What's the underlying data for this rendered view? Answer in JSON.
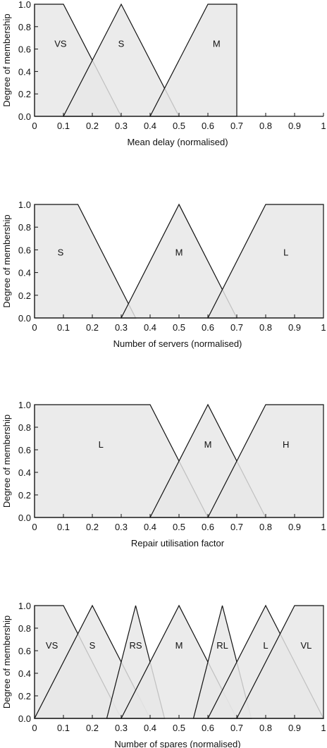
{
  "chart_data": [
    {
      "type": "area",
      "xlabel": "Mean delay (normalised)",
      "ylabel": "Degree of membership",
      "xlim": [
        0,
        1
      ],
      "ylim": [
        0,
        1
      ],
      "xticks": [
        "0",
        "0.1",
        "0.2",
        "0.3",
        "0.4",
        "0.5",
        "0.6",
        "0.7",
        "0.8",
        "0.9",
        "1"
      ],
      "yticks": [
        "0.0",
        "0.2",
        "0.4",
        "0.6",
        "0.8",
        "1.0"
      ],
      "series": [
        {
          "name": "VS",
          "x": [
            0,
            0,
            0.1,
            0.3
          ],
          "y": [
            0,
            1,
            1,
            0
          ],
          "label_x": 0.09,
          "label_y": 0.65
        },
        {
          "name": "S",
          "x": [
            0.1,
            0.3,
            0.5
          ],
          "y": [
            0,
            1,
            0
          ],
          "label_x": 0.3,
          "label_y": 0.65
        },
        {
          "name": "M",
          "x": [
            0.4,
            0.6,
            0.7,
            0.7
          ],
          "y": [
            0,
            1,
            1,
            0
          ],
          "label_x": 0.63,
          "label_y": 0.65
        }
      ]
    },
    {
      "type": "area",
      "xlabel": "Number of servers (normalised)",
      "ylabel": "Degree of membership",
      "xlim": [
        0,
        1
      ],
      "ylim": [
        0,
        1
      ],
      "xticks": [
        "0",
        "0.1",
        "0.2",
        "0.3",
        "0.4",
        "0.5",
        "0.6",
        "0.7",
        "0.8",
        "0.9",
        "1"
      ],
      "yticks": [
        "0.0",
        "0.2",
        "0.4",
        "0.6",
        "0.8",
        "1.0"
      ],
      "series": [
        {
          "name": "S",
          "x": [
            0,
            0,
            0.15,
            0.35
          ],
          "y": [
            0,
            1,
            1,
            0
          ],
          "label_x": 0.09,
          "label_y": 0.58
        },
        {
          "name": "M",
          "x": [
            0.3,
            0.5,
            0.7
          ],
          "y": [
            0,
            1,
            0
          ],
          "label_x": 0.5,
          "label_y": 0.58
        },
        {
          "name": "L",
          "x": [
            0.6,
            0.8,
            1,
            1
          ],
          "y": [
            0,
            1,
            1,
            0
          ],
          "label_x": 0.87,
          "label_y": 0.58
        }
      ]
    },
    {
      "type": "area",
      "xlabel": "Repair utilisation factor",
      "ylabel": "Degree of membership",
      "xlim": [
        0,
        1
      ],
      "ylim": [
        0,
        1
      ],
      "xticks": [
        "0",
        "0.1",
        "0.2",
        "0.3",
        "0.4",
        "0.5",
        "0.6",
        "0.7",
        "0.8",
        "0.9",
        "1"
      ],
      "yticks": [
        "0.0",
        "0.2",
        "0.4",
        "0.6",
        "0.8",
        "1.0"
      ],
      "series": [
        {
          "name": "L",
          "x": [
            0,
            0,
            0.4,
            0.6
          ],
          "y": [
            0,
            1,
            1,
            0
          ],
          "label_x": 0.23,
          "label_y": 0.65
        },
        {
          "name": "M",
          "x": [
            0.4,
            0.6,
            0.8
          ],
          "y": [
            0,
            1,
            0
          ],
          "label_x": 0.6,
          "label_y": 0.65
        },
        {
          "name": "H",
          "x": [
            0.6,
            0.8,
            1,
            1
          ],
          "y": [
            0,
            1,
            1,
            0
          ],
          "label_x": 0.87,
          "label_y": 0.65
        }
      ]
    },
    {
      "type": "area",
      "xlabel": "Number of spares (normalised)",
      "ylabel": "Degree of membership",
      "xlim": [
        0,
        1
      ],
      "ylim": [
        0,
        1
      ],
      "xticks": [
        "0",
        "0.1",
        "0.2",
        "0.3",
        "0.4",
        "0.5",
        "0.6",
        "0.7",
        "0.8",
        "0.9",
        "1"
      ],
      "yticks": [
        "0.0",
        "0.2",
        "0.4",
        "0.6",
        "0.8",
        "1.0"
      ],
      "series": [
        {
          "name": "VS",
          "x": [
            0,
            0,
            0.1,
            0.3
          ],
          "y": [
            0,
            1,
            1,
            0
          ],
          "label_x": 0.06,
          "label_y": 0.65
        },
        {
          "name": "S",
          "x": [
            0,
            0.2,
            0.4
          ],
          "y": [
            0,
            1,
            0
          ],
          "label_x": 0.2,
          "label_y": 0.65
        },
        {
          "name": "RS",
          "x": [
            0.25,
            0.35,
            0.45
          ],
          "y": [
            0,
            1,
            0
          ],
          "label_x": 0.35,
          "label_y": 0.65
        },
        {
          "name": "M",
          "x": [
            0.3,
            0.5,
            0.7
          ],
          "y": [
            0,
            1,
            0
          ],
          "label_x": 0.5,
          "label_y": 0.65
        },
        {
          "name": "RL",
          "x": [
            0.55,
            0.65,
            0.75
          ],
          "y": [
            0,
            1,
            0
          ],
          "label_x": 0.65,
          "label_y": 0.65
        },
        {
          "name": "L",
          "x": [
            0.6,
            0.8,
            1.0
          ],
          "y": [
            0,
            1,
            0
          ],
          "label_x": 0.8,
          "label_y": 0.65
        },
        {
          "name": "VL",
          "x": [
            0.7,
            0.9,
            1,
            1
          ],
          "y": [
            0,
            1,
            1,
            0
          ],
          "label_x": 0.94,
          "label_y": 0.65
        }
      ]
    }
  ],
  "colors": {
    "fill": "#e6e6e6",
    "fill_alpha": 0.82,
    "stroke": "#111111",
    "background": "#ffffff"
  }
}
